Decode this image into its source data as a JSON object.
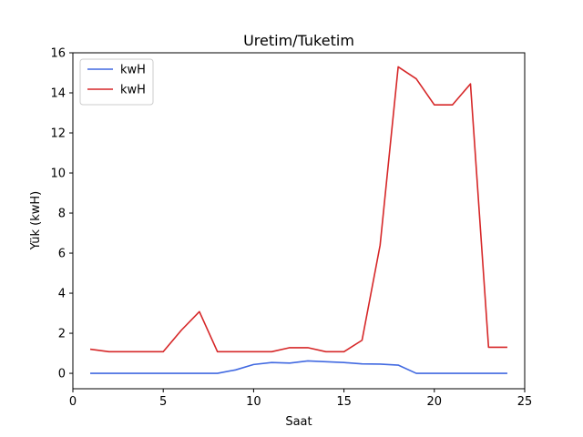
{
  "chart_data": {
    "type": "line",
    "title": "Uretim/Tuketim",
    "xlabel": "Saat",
    "ylabel": "Yük (kwH)",
    "xlim": [
      0.0,
      25.0
    ],
    "ylim": [
      -0.77,
      16.0
    ],
    "xticks": [
      0,
      5,
      10,
      15,
      20,
      25
    ],
    "yticks": [
      0,
      2,
      4,
      6,
      8,
      10,
      12,
      14,
      16
    ],
    "grid": false,
    "legend_position": "top-left",
    "x": [
      1,
      2,
      3,
      4,
      5,
      6,
      7,
      8,
      9,
      10,
      11,
      12,
      13,
      14,
      15,
      16,
      17,
      18,
      19,
      20,
      21,
      22,
      23,
      24
    ],
    "series": [
      {
        "name": "kwH",
        "color": "#4169e1",
        "values": [
          0.0,
          0.0,
          0.0,
          0.0,
          0.0,
          0.0,
          0.0,
          0.0,
          0.17,
          0.44,
          0.54,
          0.51,
          0.62,
          0.58,
          0.54,
          0.47,
          0.46,
          0.41,
          0.0,
          0.0,
          0.0,
          0.0,
          0.0,
          0.0
        ]
      },
      {
        "name": "kwH",
        "color": "#d62728",
        "values": [
          1.2,
          1.08,
          1.08,
          1.08,
          1.08,
          2.15,
          3.08,
          1.08,
          1.08,
          1.08,
          1.08,
          1.28,
          1.28,
          1.08,
          1.08,
          1.65,
          6.4,
          15.3,
          14.7,
          13.4,
          13.4,
          14.45,
          1.3,
          1.3
        ]
      }
    ]
  }
}
